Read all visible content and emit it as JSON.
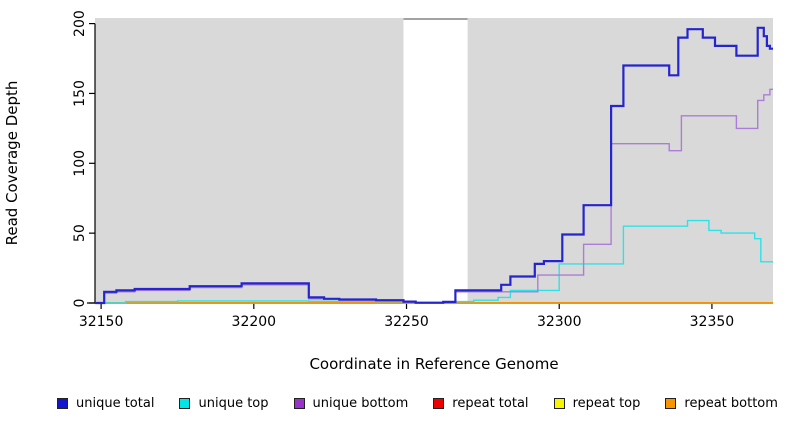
{
  "chart_data": {
    "type": "line",
    "subtype": "step-coverage",
    "title": "",
    "xlabel": "Coordinate in Reference Genome",
    "ylabel": "Read Coverage Depth",
    "xlim": [
      32148,
      32370
    ],
    "ylim": [
      0,
      204
    ],
    "x_ticks": [
      32150,
      32200,
      32250,
      32300,
      32350
    ],
    "y_ticks": [
      0,
      50,
      100,
      150,
      200
    ],
    "grid": false,
    "legend_position": "bottom",
    "plot_bg_color": "#d9d9d9",
    "masked_region": {
      "from": 32249,
      "to": 32270,
      "color": "#ffffff",
      "top_border_color": "#a3a3a3"
    },
    "series": [
      {
        "name": "repeat total",
        "color": "#ee0000",
        "width": 1.2,
        "points": [
          [
            32148,
            0
          ]
        ]
      },
      {
        "name": "repeat top",
        "color": "#f6f600",
        "width": 1.2,
        "points": [
          [
            32148,
            0
          ]
        ]
      },
      {
        "name": "repeat bottom",
        "color": "#f79400",
        "width": 1.8,
        "points": [
          [
            32148,
            0
          ]
        ]
      },
      {
        "name": "unique top",
        "color": "#2de2e6",
        "width": 1.4,
        "points": [
          [
            32148,
            0
          ],
          [
            32158,
            1
          ],
          [
            32175,
            1.5
          ],
          [
            32218,
            1.2
          ],
          [
            32240,
            1
          ],
          [
            32253,
            0.3
          ],
          [
            32266,
            1
          ],
          [
            32272,
            2
          ],
          [
            32280,
            4
          ],
          [
            32284,
            9
          ],
          [
            32300,
            28
          ],
          [
            32321,
            55
          ],
          [
            32342,
            59
          ],
          [
            32349,
            52
          ],
          [
            32353,
            50
          ],
          [
            32364,
            46
          ],
          [
            32366,
            29.5
          ]
        ]
      },
      {
        "name": "unique bottom",
        "color": "#ab7dd6",
        "width": 1.4,
        "points": [
          [
            32148,
            0
          ],
          [
            32151,
            7
          ],
          [
            32155,
            8
          ],
          [
            32161,
            9
          ],
          [
            32179,
            11
          ],
          [
            32196,
            13
          ],
          [
            32218,
            3
          ],
          [
            32228,
            2
          ],
          [
            32240,
            1.5
          ],
          [
            32249,
            0.6
          ],
          [
            32253,
            0.1
          ],
          [
            32266,
            8
          ],
          [
            32293,
            20
          ],
          [
            32308,
            42
          ],
          [
            32317,
            114
          ],
          [
            32336,
            109
          ],
          [
            32340,
            134
          ],
          [
            32358,
            125
          ],
          [
            32365,
            145
          ],
          [
            32367,
            149
          ],
          [
            32369,
            153
          ]
        ]
      },
      {
        "name": "unique total",
        "color": "#2525cd",
        "width": 2.2,
        "points": [
          [
            32148,
            0
          ],
          [
            32151,
            8
          ],
          [
            32155,
            9
          ],
          [
            32161,
            10
          ],
          [
            32179,
            12
          ],
          [
            32196,
            14
          ],
          [
            32218,
            4
          ],
          [
            32223,
            3
          ],
          [
            32228,
            2.5
          ],
          [
            32240,
            2
          ],
          [
            32249,
            1
          ],
          [
            32253,
            0.2
          ],
          [
            32262,
            0.8
          ],
          [
            32266,
            9
          ],
          [
            32281,
            13
          ],
          [
            32284,
            19
          ],
          [
            32292,
            28
          ],
          [
            32295,
            30
          ],
          [
            32301,
            49
          ],
          [
            32308,
            70
          ],
          [
            32317,
            141
          ],
          [
            32321,
            170
          ],
          [
            32336,
            163
          ],
          [
            32339,
            190
          ],
          [
            32342,
            196
          ],
          [
            32347,
            190
          ],
          [
            32351,
            184
          ],
          [
            32358,
            177
          ],
          [
            32365,
            197
          ],
          [
            32367,
            191
          ],
          [
            32368,
            184
          ],
          [
            32369,
            182
          ]
        ]
      }
    ],
    "legend": [
      {
        "label": "unique total",
        "color": "#1414cc"
      },
      {
        "label": "unique top",
        "color": "#00e5e5"
      },
      {
        "label": "unique bottom",
        "color": "#9933cc"
      },
      {
        "label": "repeat total",
        "color": "#ee0000"
      },
      {
        "label": "repeat top",
        "color": "#f6f600"
      },
      {
        "label": "repeat bottom",
        "color": "#f79400"
      }
    ]
  }
}
